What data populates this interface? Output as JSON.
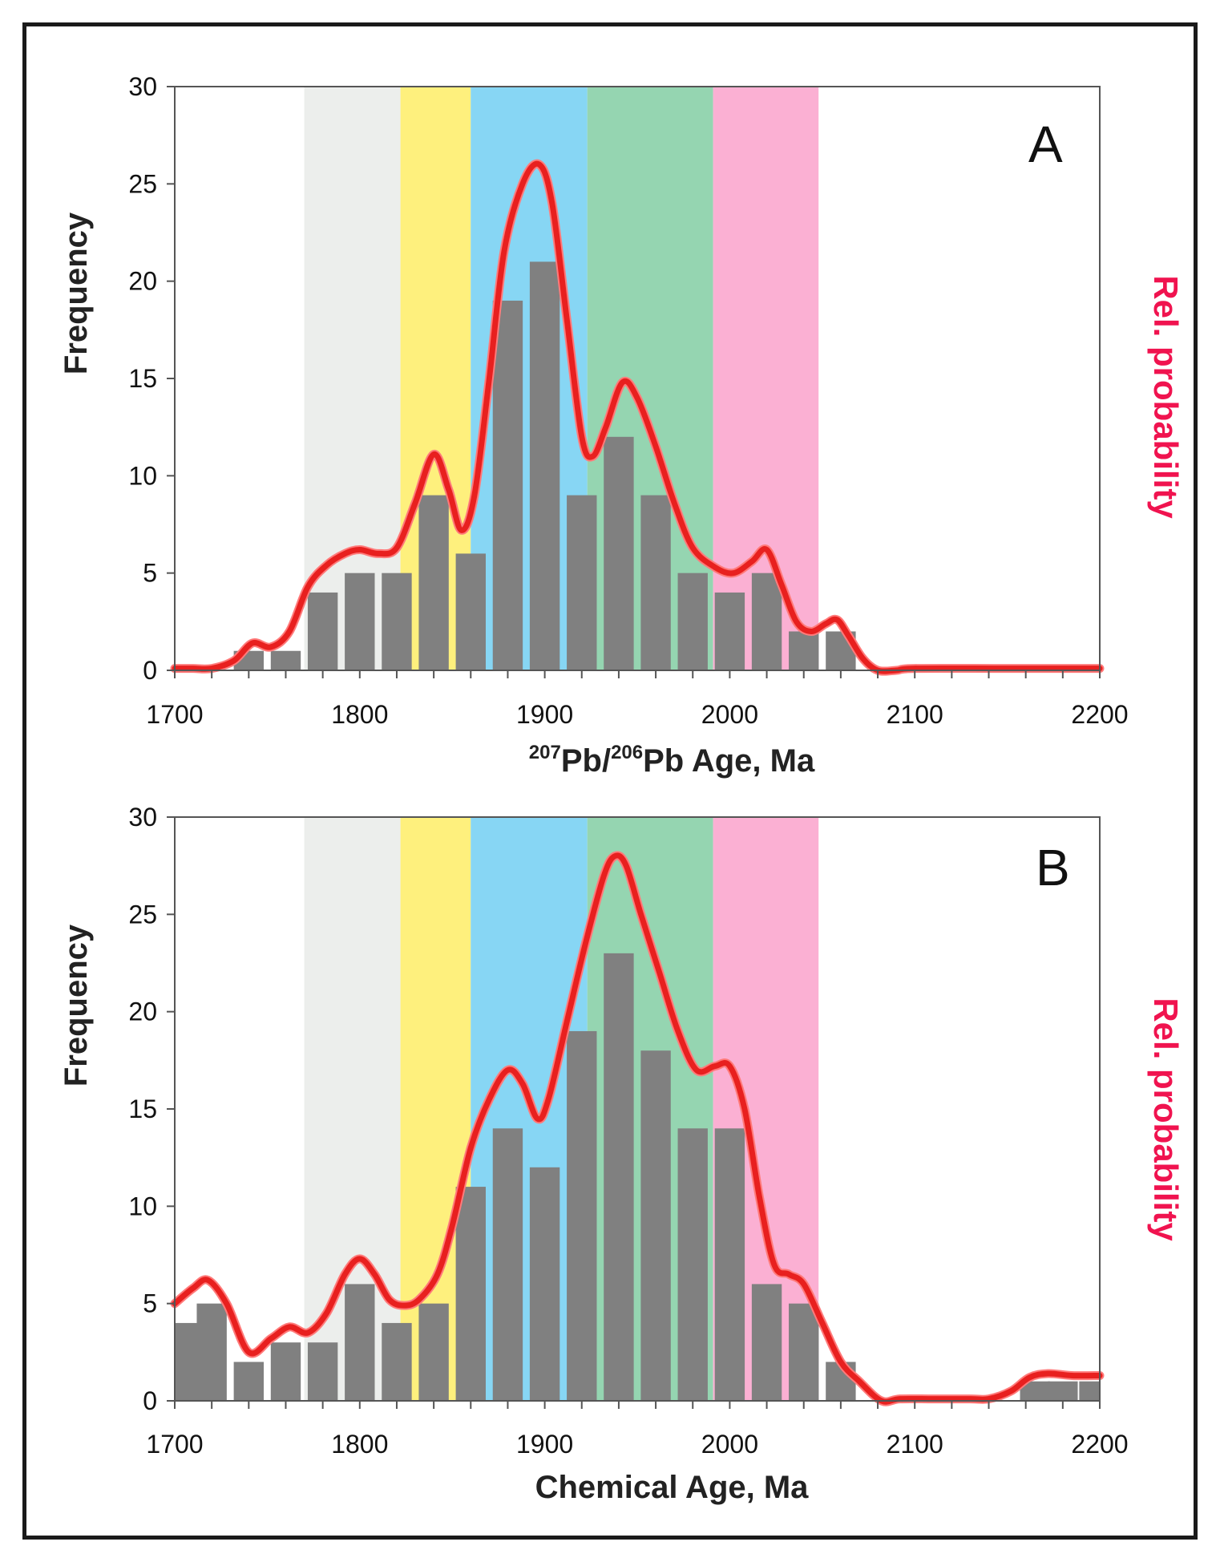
{
  "colors": {
    "bar": "#808080",
    "curve": "#e8201f",
    "rel_label": "#f0134f",
    "bands": [
      "#eceeec",
      "#fef07d",
      "#87d6f4",
      "#95d5b1",
      "#fbb0d3"
    ]
  },
  "bands": [
    {
      "from": 1770,
      "to": 1822,
      "color_index": 0
    },
    {
      "from": 1822,
      "to": 1860,
      "color_index": 1
    },
    {
      "from": 1860,
      "to": 1923,
      "color_index": 2
    },
    {
      "from": 1923,
      "to": 1991,
      "color_index": 3
    },
    {
      "from": 1991,
      "to": 2048,
      "color_index": 4
    }
  ],
  "chart_data": [
    {
      "type": "bar",
      "panel_label": "A",
      "xlabel_prefix_sup1": "207",
      "xlabel_mid": "Pb/",
      "xlabel_sup2": "206",
      "xlabel_rest": "Pb Age, Ma",
      "ylabel": "Frequency",
      "y2label": "Rel. probability",
      "xlim": [
        1700,
        2200
      ],
      "ylim": [
        0,
        30
      ],
      "xticks": [
        "1700",
        "1800",
        "1900",
        "2000",
        "2100",
        "2200"
      ],
      "yticks": [
        "0",
        "5",
        "10",
        "15",
        "20",
        "25",
        "30"
      ],
      "bar_centers": [
        1740,
        1760,
        1780,
        1800,
        1820,
        1840,
        1860,
        1880,
        1900,
        1920,
        1940,
        1960,
        1980,
        2000,
        2020,
        2040,
        2060
      ],
      "values": [
        1,
        1,
        4,
        5,
        5,
        9,
        6,
        19,
        21,
        9,
        12,
        9,
        5,
        4,
        5,
        2,
        2
      ],
      "curve": {
        "name": "Rel. probability",
        "x": [
          1700,
          1710,
          1720,
          1732,
          1742,
          1752,
          1762,
          1772,
          1782,
          1792,
          1800,
          1810,
          1820,
          1830,
          1840,
          1848,
          1855,
          1862,
          1870,
          1878,
          1888,
          1897,
          1904,
          1912,
          1920,
          1926,
          1933,
          1942,
          1950,
          1960,
          1970,
          1980,
          1992,
          2002,
          2012,
          2020,
          2028,
          2036,
          2044,
          2052,
          2058,
          2064,
          2072,
          2080,
          2090,
          2100,
          2150,
          2200
        ],
        "y": [
          0.1,
          0.1,
          0.1,
          0.5,
          1.4,
          1.2,
          2.0,
          4.3,
          5.4,
          6.0,
          6.2,
          6.0,
          6.3,
          8.6,
          11.1,
          9.3,
          7.2,
          9.0,
          15.0,
          21.5,
          25.0,
          26.0,
          24.0,
          18.0,
          12.0,
          11.0,
          12.5,
          14.8,
          14.0,
          11.5,
          8.6,
          6.3,
          5.3,
          5.0,
          5.6,
          6.2,
          4.4,
          2.5,
          2.0,
          2.4,
          2.6,
          1.8,
          0.6,
          0.0,
          0.0,
          0.1,
          0.1,
          0.1
        ]
      }
    },
    {
      "type": "bar",
      "panel_label": "B",
      "xlabel": "Chemical Age, Ma",
      "ylabel": "Frequency",
      "y2label": "Rel. probability",
      "xlim": [
        1700,
        2200
      ],
      "ylim": [
        0,
        30
      ],
      "xticks": [
        "1700",
        "1800",
        "1900",
        "2000",
        "2100",
        "2200"
      ],
      "yticks": [
        "0",
        "5",
        "10",
        "15",
        "20",
        "25",
        "30"
      ],
      "bar_centers": [
        1705,
        1720,
        1740,
        1760,
        1780,
        1800,
        1820,
        1840,
        1860,
        1880,
        1900,
        1920,
        1940,
        1960,
        1980,
        2000,
        2020,
        2040,
        2060,
        2165,
        2180,
        2197
      ],
      "values": [
        4,
        5,
        2,
        3,
        3,
        6,
        4,
        5,
        11,
        14,
        12,
        19,
        23,
        18,
        14,
        14,
        6,
        5,
        2,
        1,
        1,
        1
      ],
      "curve": {
        "name": "Rel. probability",
        "x": [
          1700,
          1710,
          1718,
          1728,
          1740,
          1752,
          1762,
          1772,
          1782,
          1792,
          1800,
          1808,
          1816,
          1824,
          1832,
          1842,
          1850,
          1860,
          1870,
          1880,
          1888,
          1896,
          1902,
          1912,
          1922,
          1932,
          1938,
          1944,
          1952,
          1962,
          1972,
          1982,
          1992,
          2000,
          2008,
          2016,
          2024,
          2032,
          2040,
          2050,
          2060,
          2070,
          2082,
          2092,
          2110,
          2130,
          2140,
          2152,
          2162,
          2172,
          2185,
          2200
        ],
        "y": [
          5.0,
          5.8,
          6.2,
          5.0,
          2.5,
          3.2,
          3.8,
          3.5,
          4.5,
          6.5,
          7.3,
          6.5,
          5.2,
          4.9,
          5.2,
          6.5,
          9.0,
          13.0,
          15.5,
          17.0,
          16.3,
          14.5,
          15.5,
          19.5,
          23.5,
          27.0,
          28.0,
          27.5,
          25.0,
          22.0,
          19.0,
          17.0,
          17.2,
          17.2,
          15.0,
          10.5,
          7.0,
          6.5,
          6.0,
          4.0,
          2.0,
          1.0,
          0.0,
          0.1,
          0.1,
          0.1,
          0.1,
          0.5,
          1.2,
          1.4,
          1.3,
          1.3
        ]
      }
    }
  ]
}
